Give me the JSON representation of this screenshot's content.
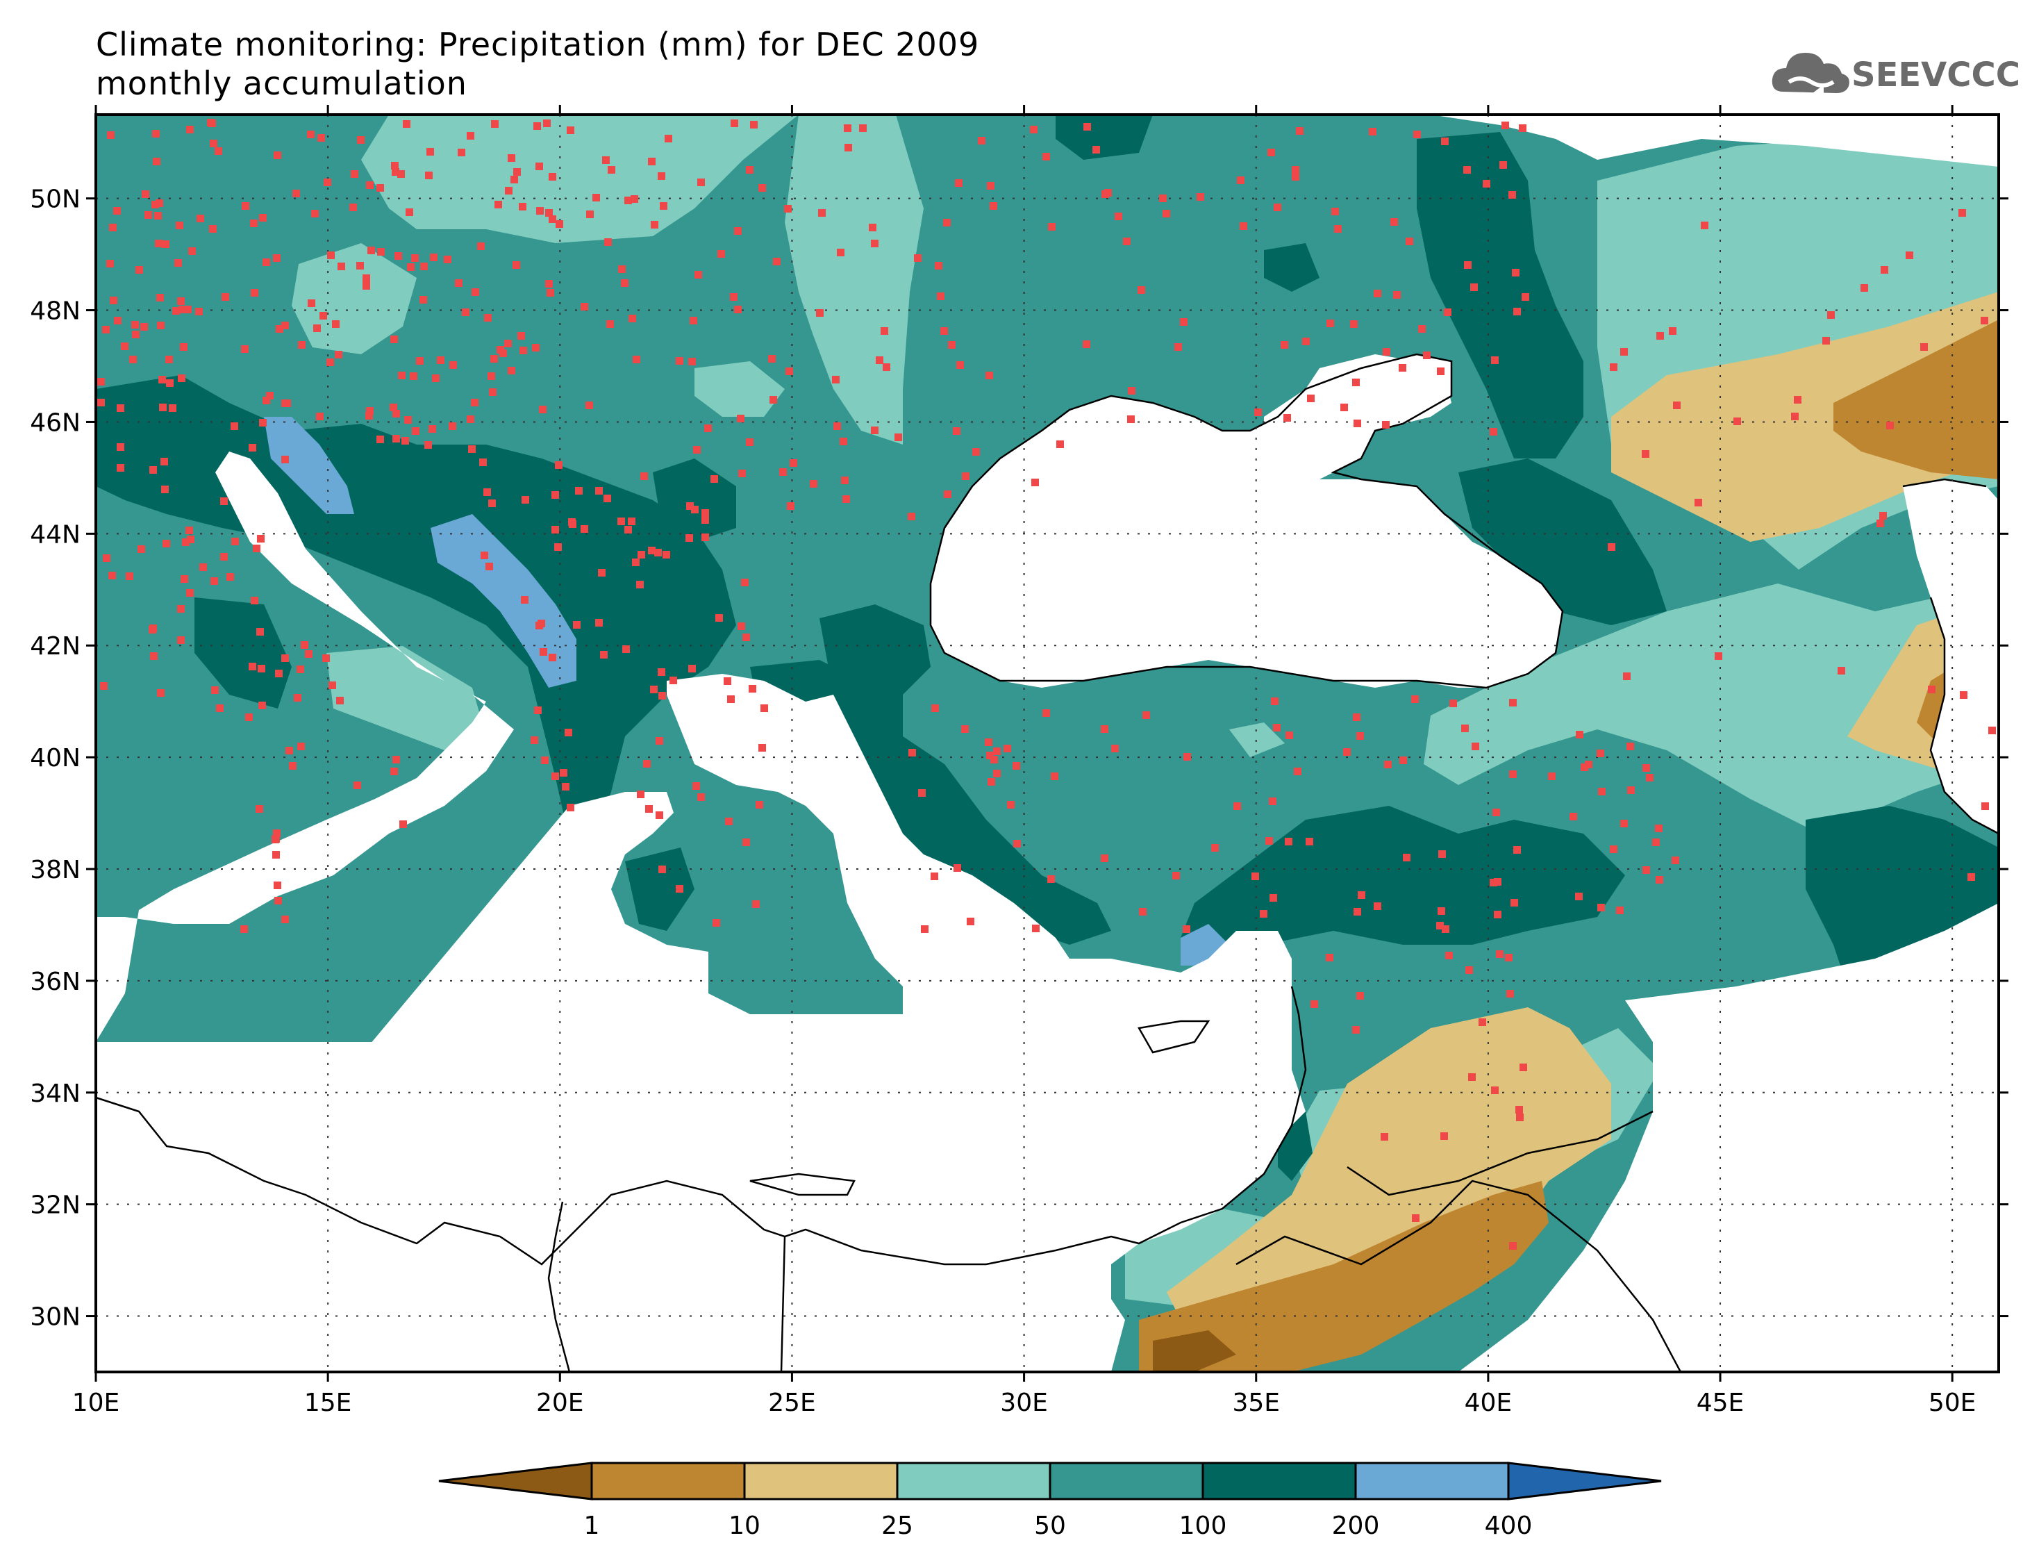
{
  "title": {
    "line1": "Climate monitoring: Precipitation (mm) for DEC 2009",
    "line2": "monthly accumulation"
  },
  "logo": {
    "text": "SEEVCCC",
    "icon": "cloud-logo-icon"
  },
  "map": {
    "lon_range": [
      10,
      51
    ],
    "lat_range": [
      29,
      51.5
    ],
    "x_ticks": [
      "10E",
      "15E",
      "20E",
      "25E",
      "30E",
      "35E",
      "40E",
      "45E",
      "50E"
    ],
    "x_tick_values": [
      10,
      15,
      20,
      25,
      30,
      35,
      40,
      45,
      50
    ],
    "y_ticks": [
      "30N",
      "32N",
      "34N",
      "36N",
      "38N",
      "40N",
      "42N",
      "44N",
      "46N",
      "48N",
      "50N"
    ],
    "y_tick_values": [
      30,
      32,
      34,
      36,
      38,
      40,
      42,
      44,
      46,
      48,
      50
    ],
    "grid": "dotted",
    "station_color": "#f04848",
    "stations_marker": "red-square"
  },
  "legend": {
    "labels": [
      "1",
      "10",
      "25",
      "50",
      "100",
      "200",
      "400"
    ],
    "colors": [
      "#8c5a14",
      "#bf8632",
      "#dfc27c",
      "#80cdc0",
      "#35978f",
      "#01665e",
      "#6aa8d6",
      "#2166ac"
    ]
  }
}
